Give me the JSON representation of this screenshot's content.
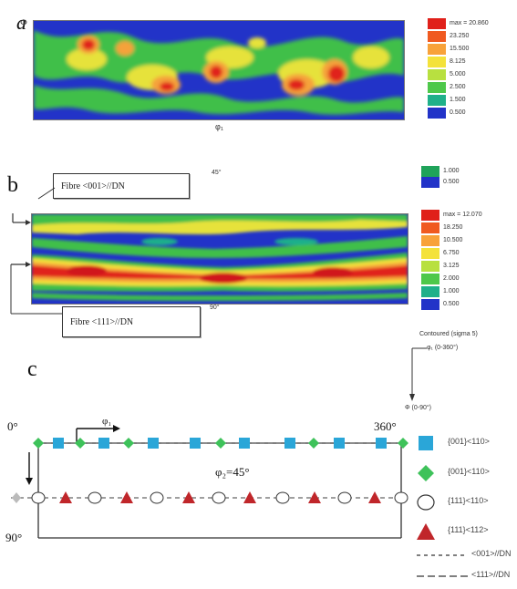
{
  "panel_a": {
    "label": "a",
    "xaxis_mark": "Φ",
    "bottom_mark": "φ₁",
    "legend_values": [
      "max = 20.860",
      "23.250",
      "15.500",
      "8.125",
      "5.000",
      "2.500",
      "1.500",
      "0.500"
    ],
    "legend_colors": [
      "#e0201a",
      "#f05a20",
      "#f8a23a",
      "#f4e23a",
      "#b8e040",
      "#4ec84a",
      "#1fb08a",
      "#2233c8"
    ]
  },
  "panel_b": {
    "label": "b",
    "top_mark": "45°",
    "bottom_mark": "90°",
    "fibre_001_label": "Fibre <001>//DN",
    "fibre_111_label": "Fibre <111>//DN",
    "legend_top_values": [
      "1.000",
      "0.500"
    ],
    "legend_top_colors": [
      "#1fa35a",
      "#2233c8"
    ],
    "legend_values": [
      "max = 12.070",
      "18.250",
      "10.500",
      "6.750",
      "3.125",
      "2.000",
      "1.000",
      "0.500"
    ],
    "legend_colors": [
      "#e0201a",
      "#f05a20",
      "#f8a23a",
      "#f4e23a",
      "#b8e040",
      "#4ec84a",
      "#1fb08a",
      "#2233c8"
    ],
    "legend_caption": "Contoured (sigma 5)"
  },
  "panel_c": {
    "label": "c",
    "axis_label_0deg": "0°",
    "axis_label_90deg": "90°",
    "axis_label_360deg": "360°",
    "phi1_label": "φ₁",
    "phi2_label": "φ₂=45°",
    "arrow_top_label": "φ₁ (0-360°)",
    "arrow_side_label": "Φ (0-90°)",
    "key": [
      {
        "symbol": "square",
        "color": "#2aa6d8",
        "label": "{001}<110>"
      },
      {
        "symbol": "diamond",
        "color": "#3ec25a",
        "label": "{001}<110>"
      },
      {
        "symbol": "circle",
        "color": "#ffffff",
        "label": "{111}<110>"
      },
      {
        "symbol": "triangle",
        "color": "#c0262a",
        "label": "{111}<112>"
      },
      {
        "symbol": "dash-short",
        "color": "#333333",
        "label": "<001>//DN"
      },
      {
        "symbol": "dash-long",
        "color": "#333333",
        "label": "<111>//DN"
      }
    ]
  }
}
